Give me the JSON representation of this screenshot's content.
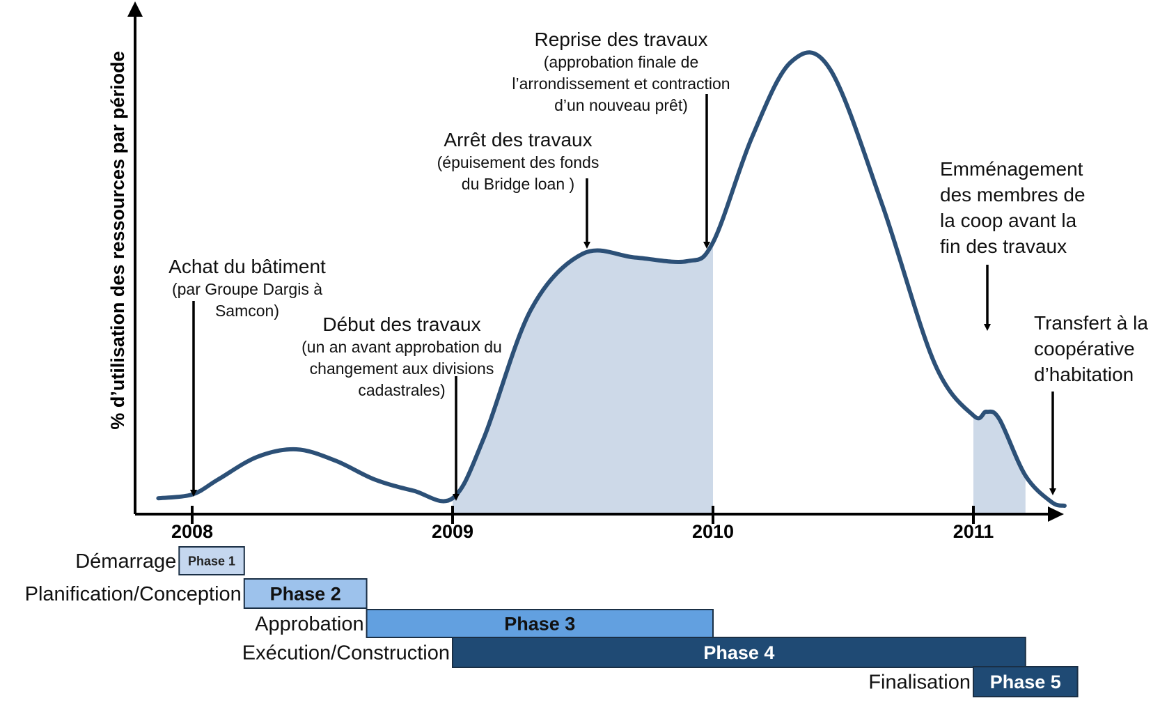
{
  "chart_data": {
    "type": "area",
    "title": "",
    "xlabel": "",
    "ylabel": "% d’utilisation des ressources par période",
    "x_ticks": [
      "2008",
      "2009",
      "2010",
      "2011"
    ],
    "xlim": [
      2007.87,
      2011.35
    ],
    "ylim": [
      0,
      100
    ],
    "grid": false,
    "colors": {
      "line": "#2c5077",
      "fill": "#cdd9e8",
      "phase1": "#c5d7ef",
      "phase2": "#9dc2ec",
      "phase3": "#62a0e0",
      "phase4": "#1f4a74",
      "phase5": "#1f4a74"
    },
    "series": [
      {
        "x": [
          2007.87,
          2008.0,
          2008.1,
          2008.25,
          2008.4,
          2008.55,
          2008.7,
          2008.85,
          2009.0,
          2009.12,
          2009.3,
          2009.5,
          2009.7,
          2009.9,
          2010.0,
          2010.15,
          2010.3,
          2010.45,
          2010.65,
          2010.85,
          2011.0,
          2011.05,
          2011.1,
          2011.2,
          2011.3,
          2011.35
        ],
        "y": [
          2,
          3,
          7,
          13,
          15,
          12,
          7,
          4,
          2,
          18,
          52,
          67,
          66,
          65,
          70,
          98,
          118,
          116,
          80,
          38,
          24,
          25,
          23,
          8,
          1,
          0
        ]
      }
    ],
    "shaded_regions": [
      [
        2009.0,
        2010.0
      ],
      [
        2011.0,
        2011.2
      ]
    ],
    "annotations": [
      {
        "x": 2008.0,
        "title": "Achat du bâtiment",
        "lines": [
          "(par Groupe Dargis à",
          "Samcon)"
        ]
      },
      {
        "x": 2009.0,
        "title": "Début des travaux",
        "lines": [
          "(un an avant approbation du",
          "changement aux divisions",
          "cadastrales)"
        ]
      },
      {
        "x": 2009.5,
        "title": "Arrêt des travaux",
        "lines": [
          "(épuisement des fonds",
          "du Bridge loan )"
        ]
      },
      {
        "x": 2009.95,
        "title": "Reprise des travaux",
        "lines": [
          "(approbation finale de",
          "l’arrondissement et contraction",
          "d’un nouveau prêt)"
        ]
      },
      {
        "x": 2011.02,
        "title": "",
        "lines": [
          "Emménagement",
          "des membres de",
          "la coop avant la",
          "fin des travaux"
        ]
      },
      {
        "x": 2011.28,
        "title": "",
        "lines": [
          "Transfert à la",
          "coopérative",
          "d’habitation"
        ]
      }
    ],
    "phases": [
      {
        "label": "Démarrage",
        "name": "Phase 1",
        "start": 2007.95,
        "end": 2008.2
      },
      {
        "label": "Planification/Conception",
        "name": "Phase 2",
        "start": 2008.2,
        "end": 2008.67
      },
      {
        "label": "Approbation",
        "name": "Phase 3",
        "start": 2008.67,
        "end": 2010.0
      },
      {
        "label": "Exécution/Construction",
        "name": "Phase 4",
        "start": 2009.0,
        "end": 2011.2
      },
      {
        "label": "Finalisation",
        "name": "Phase 5",
        "start": 2011.0,
        "end": 2011.4
      }
    ]
  }
}
